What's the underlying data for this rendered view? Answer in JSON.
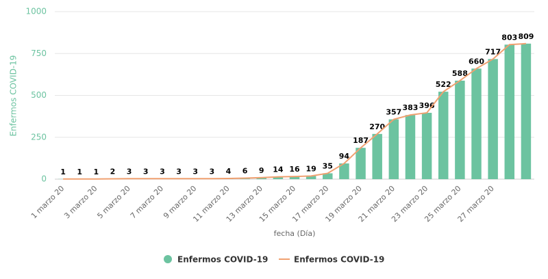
{
  "chart_data": {
    "type": "bar",
    "x_label": "fecha (Día)",
    "y_label": "Enfermos COVID-19",
    "categories": [
      "1 marzo 20",
      null,
      "3 marzo 20",
      null,
      "5 marzo 20",
      null,
      "7 marzo 20",
      null,
      "9 marzo 20",
      null,
      "11 marzo 20",
      null,
      "13 marzo 20",
      null,
      "15 marzo 20",
      null,
      "17 marzo 20",
      null,
      "19 marzo 20",
      null,
      "21 marzo 20",
      null,
      "23 marzo 20",
      null,
      "25 marzo 20",
      null,
      "27 marzo 20",
      null,
      null
    ],
    "series": [
      {
        "name": "Enfermos COVID-19",
        "type": "bar",
        "color": "#6cc3a0",
        "values": [
          1,
          1,
          1,
          2,
          3,
          3,
          3,
          3,
          3,
          3,
          4,
          6,
          9,
          14,
          16,
          19,
          35,
          94,
          187,
          270,
          357,
          383,
          396,
          522,
          588,
          660,
          717,
          803,
          809
        ]
      },
      {
        "name": "Enfermos COVID-19",
        "type": "line",
        "color": "#f0a070",
        "values": [
          1,
          1,
          1,
          2,
          3,
          3,
          3,
          3,
          3,
          3,
          4,
          6,
          9,
          14,
          16,
          19,
          35,
          94,
          187,
          270,
          357,
          383,
          396,
          522,
          588,
          660,
          717,
          803,
          809
        ]
      }
    ],
    "ylim": [
      0,
      1000
    ],
    "yticks": [
      0,
      250,
      500,
      750,
      1000
    ],
    "grid": true
  }
}
